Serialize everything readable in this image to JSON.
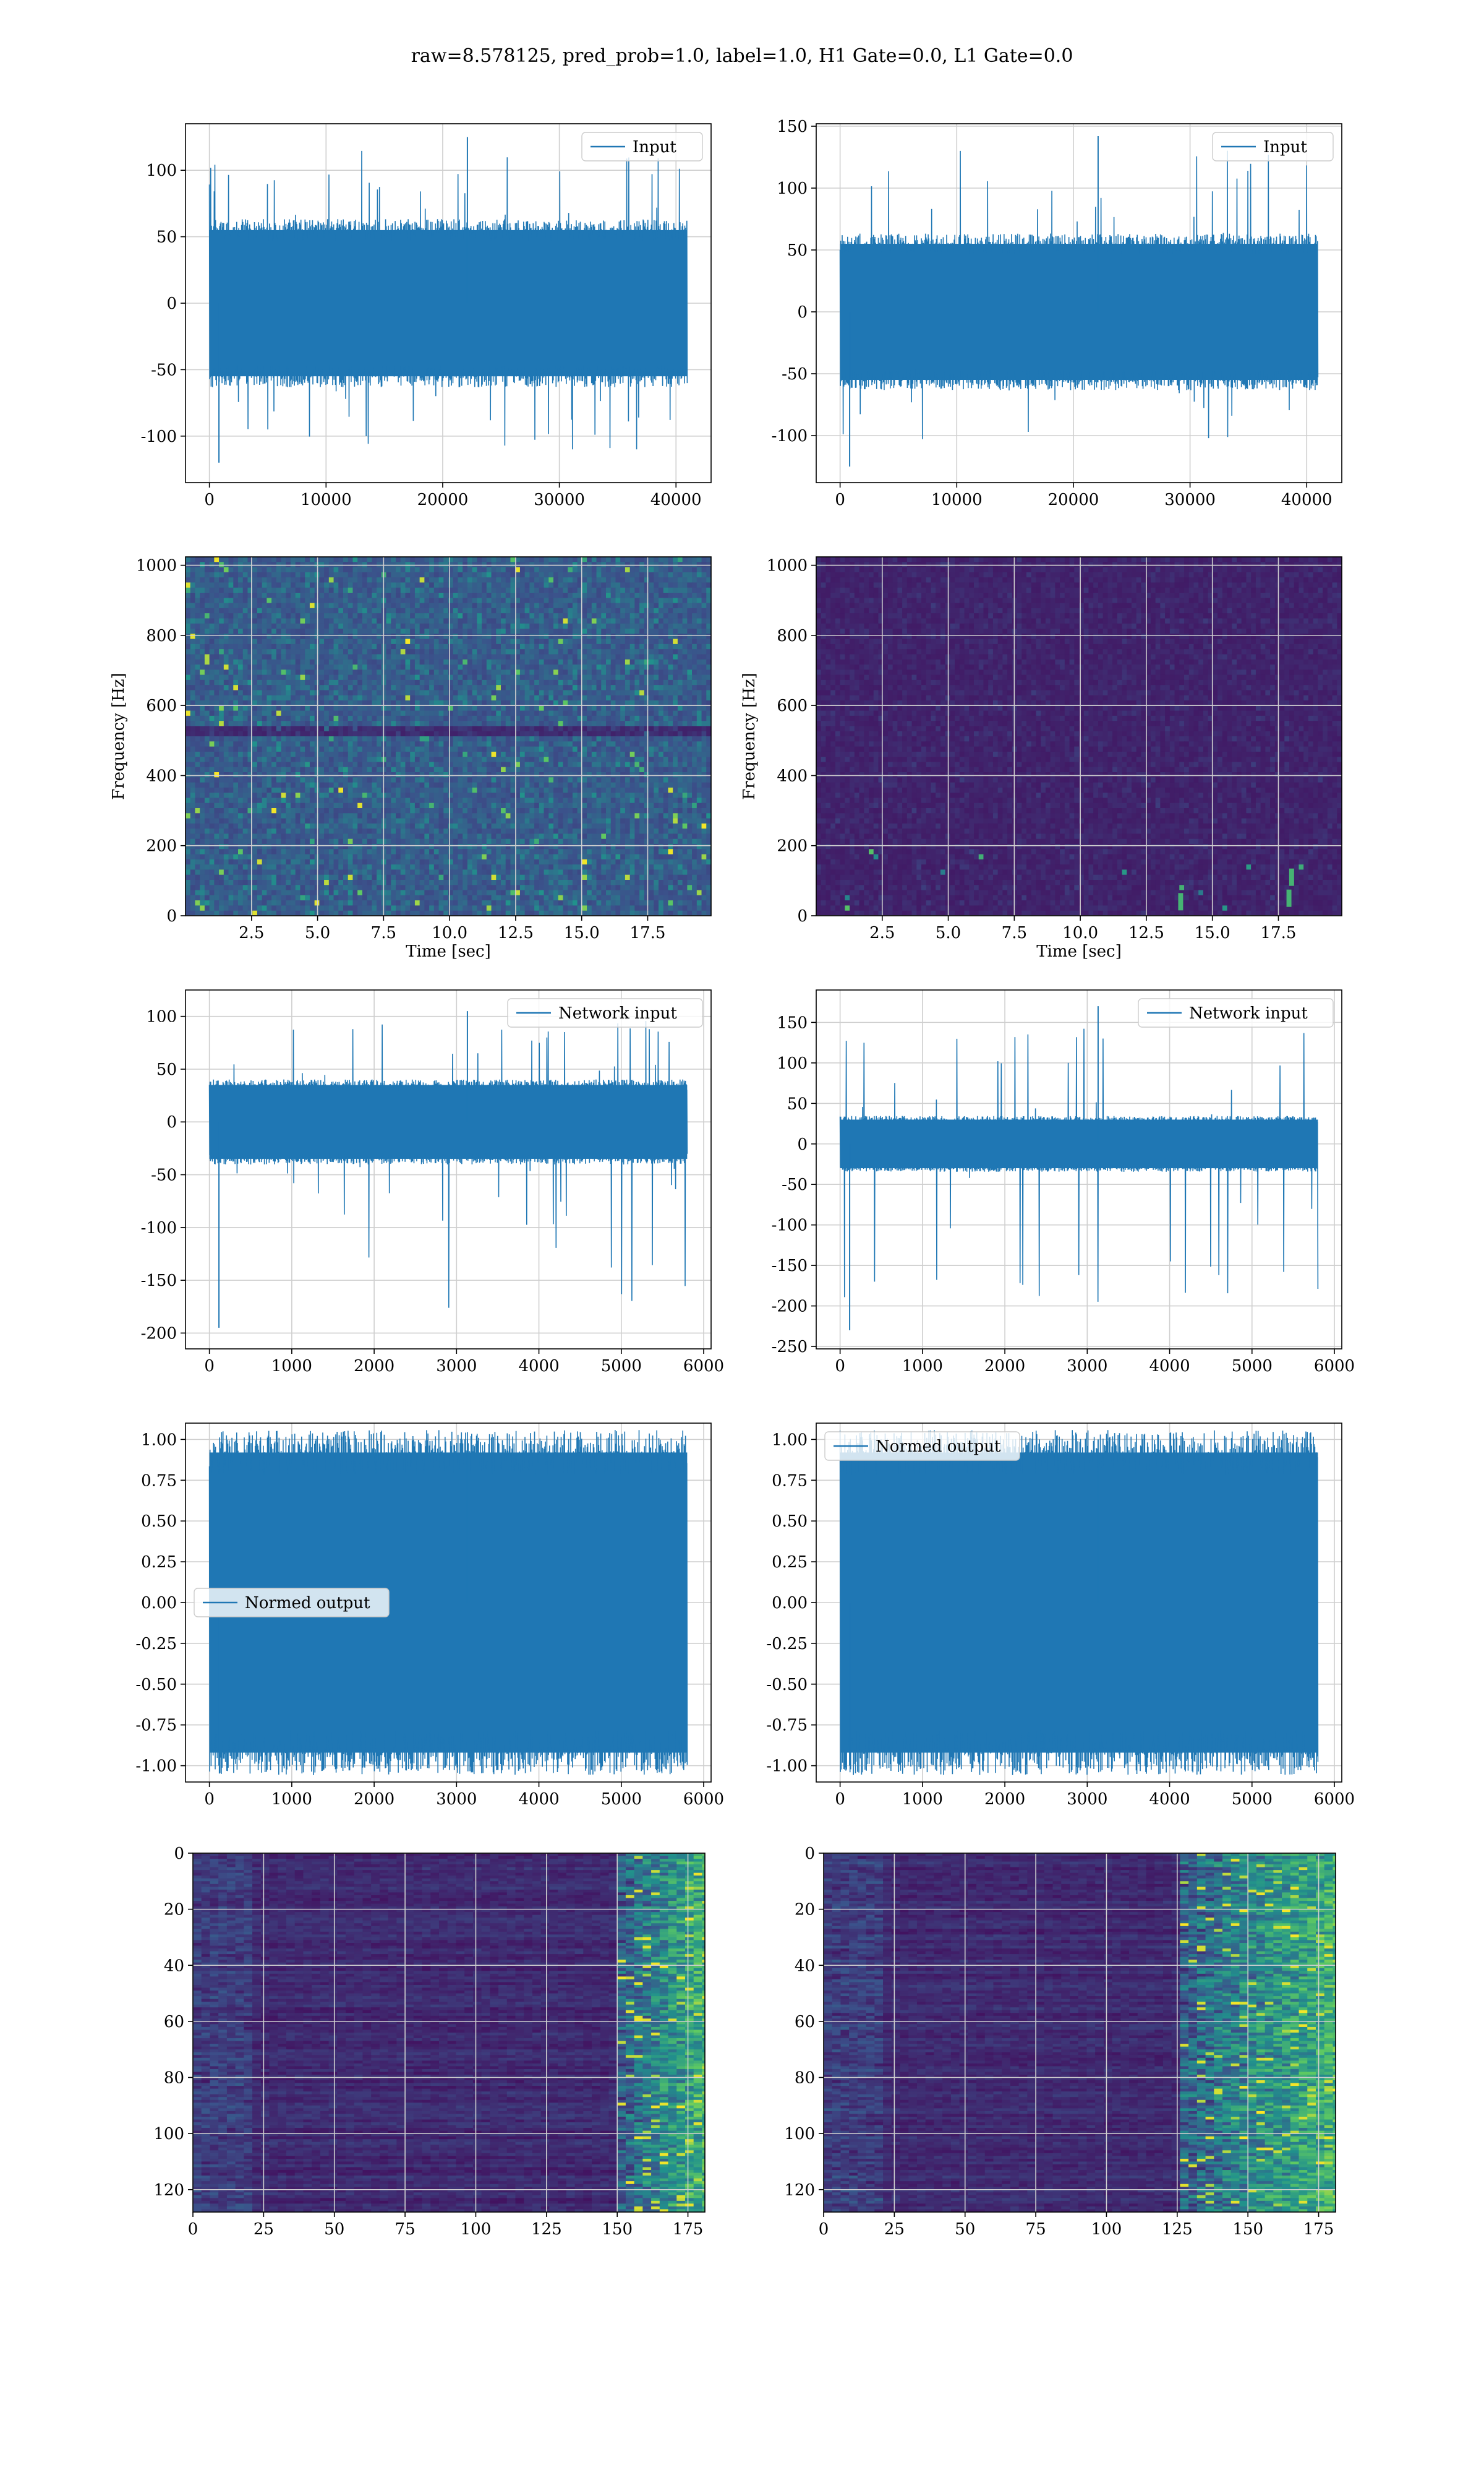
{
  "title": "raw=8.578125, pred_prob=1.0, label=1.0, H1 Gate=0.0, L1 Gate=0.0",
  "colors": {
    "line": "#1f77b4",
    "grid": "#cfcfcf",
    "viridis_dark": "#440154",
    "viridis_mid": "#3b528b",
    "viridis_green": "#21918c",
    "viridis_bright": "#fde725"
  },
  "chart_data": [
    {
      "type": "line",
      "legend": "Input",
      "legend_loc": "upper right",
      "xlim": [
        -2048,
        43008
      ],
      "ylim": [
        -135,
        135
      ],
      "xticks": [
        0,
        10000,
        20000,
        30000,
        40000
      ],
      "yticks": [
        -100,
        -50,
        0,
        50,
        100
      ],
      "n": 40960,
      "band": [
        -55,
        55
      ],
      "spikes": [
        -120,
        125
      ],
      "grid": true
    },
    {
      "type": "line",
      "legend": "Input",
      "legend_loc": "upper right",
      "xlim": [
        -2048,
        43008
      ],
      "ylim": [
        -138,
        152
      ],
      "xticks": [
        0,
        10000,
        20000,
        30000,
        40000
      ],
      "yticks": [
        -100,
        -50,
        0,
        50,
        100,
        150
      ],
      "n": 40960,
      "band": [
        -55,
        55
      ],
      "spikes": [
        -125,
        142
      ],
      "grid": true
    },
    {
      "type": "heatmap",
      "kind": "spectrogram",
      "xlabel": "Time [sec]",
      "ylabel": "Frequency [Hz]",
      "xlim": [
        0,
        19.9
      ],
      "ylim": [
        0,
        1024
      ],
      "xticks": [
        2.5,
        5.0,
        7.5,
        10.0,
        12.5,
        15.0,
        17.5
      ],
      "yticks": [
        0,
        200,
        400,
        600,
        800,
        1000
      ],
      "intensity": "moderate",
      "grid": true
    },
    {
      "type": "heatmap",
      "kind": "spectrogram",
      "xlabel": "Time [sec]",
      "ylabel": "Frequency [Hz]",
      "xlim": [
        0,
        19.9
      ],
      "ylim": [
        0,
        1024
      ],
      "xticks": [
        2.5,
        5.0,
        7.5,
        10.0,
        12.5,
        15.0,
        17.5
      ],
      "yticks": [
        0,
        200,
        400,
        600,
        800,
        1000
      ],
      "intensity": "low",
      "grid": true
    },
    {
      "type": "line",
      "legend": "Network input",
      "legend_loc": "upper right",
      "xlim": [
        -290,
        6090
      ],
      "ylim": [
        -215,
        125
      ],
      "xticks": [
        0,
        1000,
        2000,
        3000,
        4000,
        5000,
        6000
      ],
      "yticks": [
        -200,
        -150,
        -100,
        -50,
        0,
        50,
        100
      ],
      "n": 5800,
      "band": [
        -35,
        35
      ],
      "spikes": [
        -195,
        105
      ],
      "grid": true
    },
    {
      "type": "line",
      "legend": "Network input",
      "legend_loc": "upper right",
      "xlim": [
        -290,
        6090
      ],
      "ylim": [
        -253,
        190
      ],
      "xticks": [
        0,
        1000,
        2000,
        3000,
        4000,
        5000,
        6000
      ],
      "yticks": [
        -250,
        -200,
        -150,
        -100,
        -50,
        0,
        50,
        100,
        150
      ],
      "n": 5800,
      "band": [
        -30,
        30
      ],
      "spikes": [
        -230,
        170
      ],
      "grid": true
    },
    {
      "type": "line",
      "legend": "Normed output",
      "legend_loc": "center left",
      "xlim": [
        -290,
        6090
      ],
      "ylim": [
        -1.1,
        1.1
      ],
      "xticks": [
        0,
        1000,
        2000,
        3000,
        4000,
        5000,
        6000
      ],
      "yticks": [
        -1.0,
        -0.75,
        -0.5,
        -0.25,
        0.0,
        0.25,
        0.5,
        0.75,
        1.0
      ],
      "n": 5800,
      "band": [
        -0.92,
        0.92
      ],
      "spikes": [
        -1.0,
        1.0
      ],
      "grid": true
    },
    {
      "type": "line",
      "legend": "Normed output",
      "legend_loc": "upper left",
      "xlim": [
        -290,
        6090
      ],
      "ylim": [
        -1.1,
        1.1
      ],
      "xticks": [
        0,
        1000,
        2000,
        3000,
        4000,
        5000,
        6000
      ],
      "yticks": [
        -1.0,
        -0.75,
        -0.5,
        -0.25,
        0.0,
        0.25,
        0.5,
        0.75,
        1.0
      ],
      "n": 5800,
      "band": [
        -0.92,
        0.92
      ],
      "spikes": [
        -1.0,
        1.0
      ],
      "grid": true
    },
    {
      "type": "heatmap",
      "kind": "activation",
      "xlim": [
        0,
        181
      ],
      "ylim": [
        128,
        0
      ],
      "xticks": [
        0,
        25,
        50,
        75,
        100,
        125,
        150,
        175
      ],
      "yticks": [
        0,
        20,
        40,
        60,
        80,
        100,
        120
      ],
      "hot_columns": [
        150,
        181
      ],
      "grid": true
    },
    {
      "type": "heatmap",
      "kind": "activation",
      "xlim": [
        0,
        181
      ],
      "ylim": [
        128,
        0
      ],
      "xticks": [
        0,
        25,
        50,
        75,
        100,
        125,
        150,
        175
      ],
      "yticks": [
        0,
        20,
        40,
        60,
        80,
        100,
        120
      ],
      "hot_columns": [
        125,
        181
      ],
      "grid": true
    }
  ]
}
